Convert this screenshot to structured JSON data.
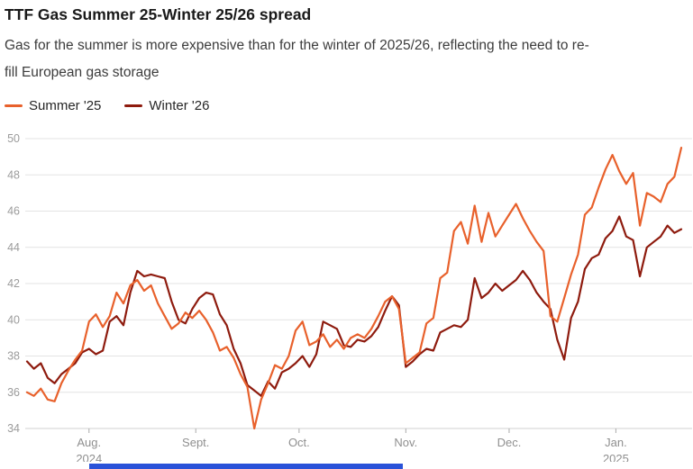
{
  "header": {
    "title": "TTF Gas Summer 25-Winter 25/26 spread",
    "subtitle_line1": "Gas for the summer is more expensive than for the winter of 2025/26, reflecting the need to re-",
    "subtitle_line2": "fill European gas storage"
  },
  "legend": {
    "items": [
      {
        "label": "Summer '25",
        "color": "#e8612c"
      },
      {
        "label": "Winter '26",
        "color": "#8e1b0e"
      }
    ]
  },
  "accents": {
    "bottom_bar_color": "#2a52d8",
    "grid_color": "#e3e3e3",
    "baseline_color": "#d2d2d2",
    "tick_color": "#ababab",
    "y_label_color": "#9b9b9b",
    "x_label_color": "#8f8f8f"
  },
  "chart_data": {
    "type": "line",
    "title": "TTF Gas Summer 25-Winter 25/26 spread",
    "subtitle": "Gas for the summer is more expensive than for the winter of 2025/26, reflecting the need to refill European gas storage",
    "xlabel": "",
    "ylabel": "",
    "ylim": [
      34,
      50
    ],
    "yticks": [
      34,
      36,
      38,
      40,
      42,
      44,
      46,
      48,
      50
    ],
    "grid": "horizontal",
    "legend_position": "top-left",
    "x_unit": "days from mid-July 2024",
    "x": [
      0,
      2,
      4,
      6,
      8,
      10,
      12,
      14,
      16,
      18,
      20,
      22,
      24,
      26,
      28,
      30,
      32,
      34,
      36,
      38,
      40,
      42,
      44,
      46,
      48,
      50,
      52,
      54,
      56,
      58,
      60,
      62,
      64,
      66,
      68,
      70,
      72,
      74,
      76,
      78,
      80,
      82,
      84,
      86,
      88,
      90,
      92,
      94,
      96,
      98,
      100,
      102,
      104,
      106,
      108,
      110,
      112,
      114,
      116,
      118,
      120,
      122,
      124,
      126,
      128,
      130,
      132,
      134,
      136,
      138,
      140,
      142,
      144,
      146,
      148,
      150,
      152,
      154,
      156,
      158,
      160,
      162,
      164,
      166,
      168,
      170,
      172,
      174,
      176,
      178,
      180,
      182,
      184,
      186,
      188,
      190
    ],
    "xticks": [
      {
        "x": 18,
        "label": "Aug.",
        "sublabel": "2024"
      },
      {
        "x": 49,
        "label": "Sept.",
        "sublabel": ""
      },
      {
        "x": 79,
        "label": "Oct.",
        "sublabel": ""
      },
      {
        "x": 110,
        "label": "Nov.",
        "sublabel": ""
      },
      {
        "x": 140,
        "label": "Dec.",
        "sublabel": ""
      },
      {
        "x": 171,
        "label": "Jan.",
        "sublabel": "2025"
      }
    ],
    "series": [
      {
        "name": "Winter '26",
        "color": "#8e1b0e",
        "values": [
          37.7,
          37.3,
          37.6,
          36.8,
          36.5,
          37.0,
          37.3,
          37.6,
          38.2,
          38.4,
          38.1,
          38.3,
          39.9,
          40.2,
          39.7,
          41.5,
          42.7,
          42.4,
          42.5,
          42.4,
          42.3,
          41.0,
          40.0,
          39.8,
          40.6,
          41.2,
          41.5,
          41.4,
          40.3,
          39.7,
          38.4,
          37.6,
          36.4,
          36.1,
          35.8,
          36.6,
          36.2,
          37.1,
          37.3,
          37.6,
          38.0,
          37.4,
          38.1,
          39.9,
          39.7,
          39.5,
          38.6,
          38.5,
          38.9,
          38.8,
          39.1,
          39.6,
          40.5,
          41.3,
          40.8,
          37.4,
          37.7,
          38.1,
          38.4,
          38.3,
          39.3,
          39.5,
          39.7,
          39.6,
          40.0,
          42.3,
          41.2,
          41.5,
          42.0,
          41.6,
          41.9,
          42.2,
          42.7,
          42.2,
          41.5,
          41.0,
          40.6,
          38.9,
          37.8,
          40.1,
          41.0,
          42.8,
          43.4,
          43.6,
          44.5,
          44.9,
          45.7,
          44.6,
          44.4,
          42.4,
          44.0,
          44.3,
          44.6,
          45.2,
          44.8,
          45.0
        ]
      },
      {
        "name": "Summer '25",
        "color": "#e8612c",
        "values": [
          36.0,
          35.8,
          36.2,
          35.6,
          35.5,
          36.5,
          37.2,
          37.8,
          38.3,
          39.9,
          40.3,
          39.6,
          40.2,
          41.5,
          40.9,
          41.9,
          42.2,
          41.6,
          41.9,
          40.9,
          40.2,
          39.5,
          39.8,
          40.4,
          40.1,
          40.5,
          40.0,
          39.3,
          38.3,
          38.5,
          37.9,
          37.0,
          36.3,
          34.0,
          35.6,
          36.5,
          37.5,
          37.3,
          38.0,
          39.4,
          39.9,
          38.6,
          38.8,
          39.2,
          38.5,
          38.9,
          38.4,
          39.0,
          39.2,
          39.0,
          39.5,
          40.2,
          41.0,
          41.3,
          40.6,
          37.6,
          37.9,
          38.2,
          39.8,
          40.1,
          42.3,
          42.6,
          44.9,
          45.4,
          44.2,
          46.3,
          44.3,
          45.9,
          44.6,
          45.2,
          45.8,
          46.4,
          45.6,
          44.9,
          44.3,
          43.8,
          40.2,
          39.9,
          41.2,
          42.5,
          43.6,
          45.8,
          46.2,
          47.3,
          48.3,
          49.1,
          48.2,
          47.5,
          48.1,
          45.2,
          47.0,
          46.8,
          46.5,
          47.5,
          47.9,
          49.5
        ]
      }
    ]
  }
}
